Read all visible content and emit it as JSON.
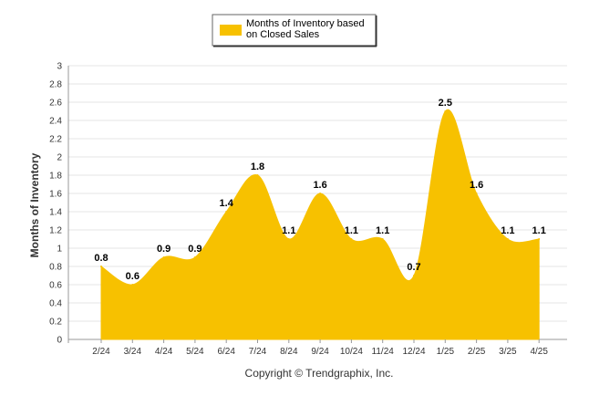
{
  "chart_data": {
    "type": "area",
    "categories": [
      "2/24",
      "3/24",
      "4/24",
      "5/24",
      "6/24",
      "7/24",
      "8/24",
      "9/24",
      "10/24",
      "11/24",
      "12/24",
      "1/25",
      "2/25",
      "3/25",
      "4/25"
    ],
    "series": [
      {
        "name": "Months of Inventory based on Closed Sales",
        "values": [
          0.8,
          0.6,
          0.9,
          0.9,
          1.4,
          1.8,
          1.1,
          1.6,
          1.1,
          1.1,
          0.7,
          2.5,
          1.6,
          1.1,
          1.1
        ],
        "labels": [
          "0.8",
          "0.6",
          "0.9",
          "0.9",
          "1.4",
          "1.8",
          "1.1",
          "1.6",
          "1.1",
          "1.1",
          "0.7",
          "2.5",
          "1.6",
          "1.1",
          "1.1"
        ],
        "color": "#F7C100"
      }
    ],
    "ylabel": "Months of Inventory",
    "xlabel": "",
    "ylim": [
      0,
      3
    ],
    "yticks": [
      "0",
      "0.2",
      "0.4",
      "0.6",
      "0.8",
      "1",
      "1.2",
      "1.4",
      "1.6",
      "1.8",
      "2",
      "2.2",
      "2.4",
      "2.6",
      "2.8",
      "3"
    ],
    "grid": true,
    "legend_position": "top-center",
    "legend_lines": [
      "Months of Inventory based",
      "on Closed Sales"
    ],
    "footer": "Copyright © Trendgraphix, Inc."
  }
}
